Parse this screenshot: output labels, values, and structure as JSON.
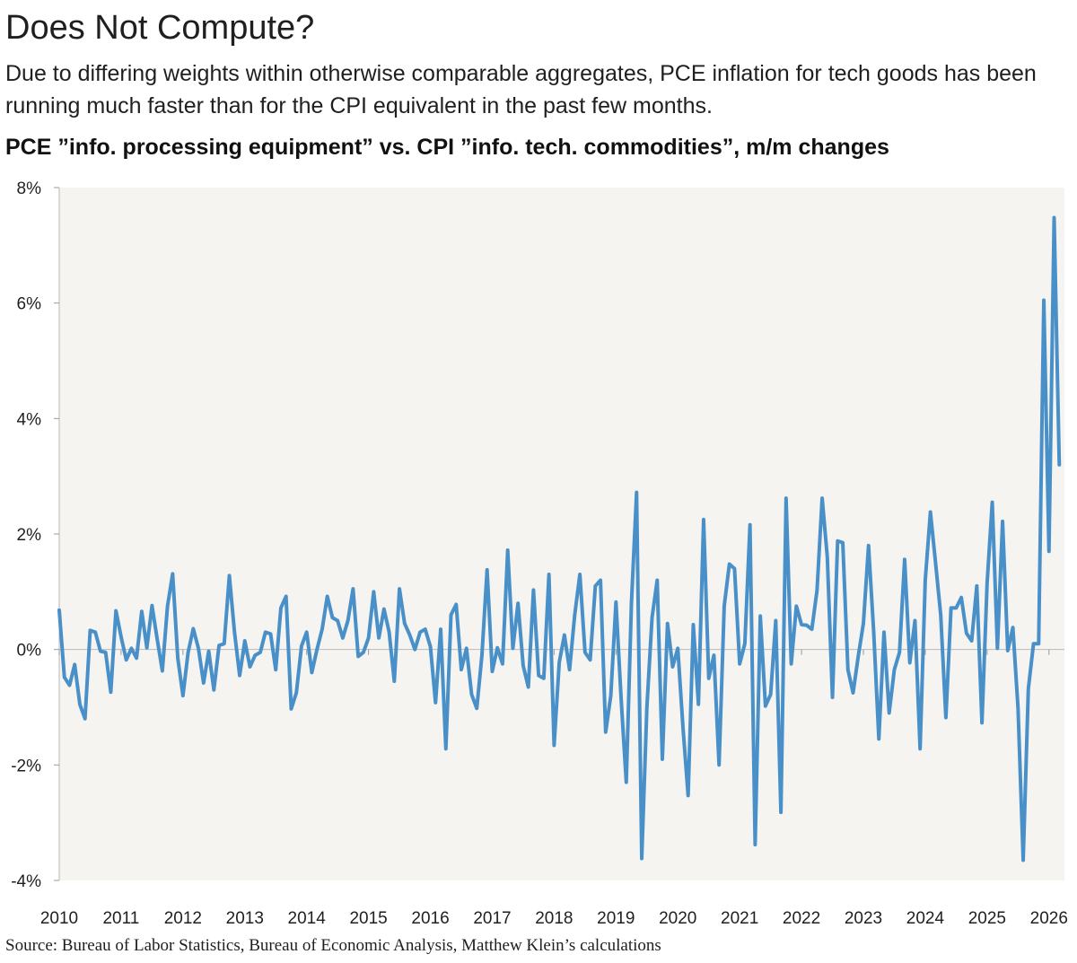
{
  "title": "Does Not Compute?",
  "subtitle": "Due to differing weights within otherwise comparable aggregates, PCE inflation for tech goods has been running much faster than for the CPI equivalent in the past few months.",
  "source": "Source: Bureau of Labor Statistics, Bureau of Economic Analysis, Matthew Klein’s calculations",
  "colors": {
    "line": "#4a90c8",
    "plot_background": "#f5f4f1",
    "zero_line": "#b9b9b9"
  },
  "chart_data": {
    "type": "line",
    "title": "PCE ”info. processing equipment” vs. CPI ”info. tech. commodities”, m/m changes",
    "xlabel": "",
    "ylabel": "",
    "unit": "%",
    "ylim": [
      -4,
      8
    ],
    "yticks": [
      -4,
      -2,
      0,
      2,
      4,
      6,
      8
    ],
    "ytick_labels": [
      "-4%",
      "-2%",
      "0%",
      "2%",
      "4%",
      "6%",
      "8%"
    ],
    "xlim": [
      2010.0,
      2026.25
    ],
    "xticks": [
      2010,
      2011,
      2012,
      2013,
      2014,
      2015,
      2016,
      2017,
      2018,
      2019,
      2020,
      2021,
      2022,
      2023,
      2024,
      2025,
      2026
    ],
    "xtick_labels": [
      "2010",
      "2011",
      "2012",
      "2013",
      "2014",
      "2015",
      "2016",
      "2017",
      "2018",
      "2019",
      "2020",
      "2021",
      "2022",
      "2023",
      "2024",
      "2025",
      "2026"
    ],
    "grid": false,
    "legend": "none",
    "series": [
      {
        "start_year": 2010,
        "start_month": 1,
        "frequency": "monthly",
        "values": [
          0.68,
          -0.48,
          -0.62,
          -0.26,
          -0.95,
          -1.2,
          0.33,
          0.3,
          -0.03,
          -0.05,
          -0.74,
          0.67,
          0.22,
          -0.18,
          0.02,
          -0.15,
          0.66,
          0.03,
          0.76,
          0.18,
          -0.37,
          0.75,
          1.31,
          -0.15,
          -0.8,
          -0.05,
          0.36,
          0.02,
          -0.58,
          -0.03,
          -0.7,
          0.07,
          0.1,
          1.28,
          0.3,
          -0.45,
          0.15,
          -0.3,
          -0.1,
          -0.05,
          0.3,
          0.27,
          -0.35,
          0.72,
          0.92,
          -1.03,
          -0.75,
          0.06,
          0.3,
          -0.4,
          0.0,
          0.35,
          0.92,
          0.55,
          0.5,
          0.2,
          0.5,
          1.05,
          -0.12,
          -0.05,
          0.2,
          1.0,
          0.2,
          0.7,
          0.3,
          -0.55,
          1.05,
          0.45,
          0.25,
          0.0,
          0.3,
          0.35,
          0.05,
          -0.92,
          0.35,
          -1.72,
          0.6,
          0.78,
          -0.35,
          0.02,
          -0.78,
          -1.02,
          -0.1,
          1.38,
          -0.38,
          0.03,
          -0.25,
          1.72,
          0.02,
          0.8,
          -0.28,
          -0.65,
          1.03,
          -0.45,
          -0.5,
          1.3,
          -1.66,
          -0.22,
          0.25,
          -0.35,
          0.6,
          1.3,
          -0.05,
          -0.18,
          1.1,
          1.2,
          -1.43,
          -0.8,
          0.82,
          -0.85,
          -2.3,
          0.8,
          2.72,
          -3.62,
          -1.0,
          0.55,
          1.2,
          -1.9,
          0.45,
          -0.3,
          0.02,
          -1.35,
          -2.53,
          0.43,
          -0.95,
          2.25,
          -0.5,
          -0.1,
          -2.0,
          0.75,
          1.48,
          1.4,
          -0.25,
          0.1,
          2.16,
          -3.38,
          0.58,
          -0.98,
          -0.78,
          0.5,
          -2.82,
          2.62,
          -0.25,
          0.75,
          0.43,
          0.42,
          0.35,
          1.02,
          2.62,
          1.6,
          -0.83,
          1.88,
          1.85,
          -0.35,
          -0.75,
          -0.12,
          0.45,
          1.8,
          0.3,
          -1.55,
          0.3,
          -1.1,
          -0.35,
          -0.05,
          1.56,
          -0.23,
          0.5,
          -1.72,
          1.2,
          2.38,
          1.5,
          0.6,
          -1.18,
          0.72,
          0.72,
          0.9,
          0.28,
          0.15,
          1.1,
          -1.27,
          1.15,
          2.55,
          0.02,
          2.22,
          -0.02,
          0.38,
          -1.02,
          -3.65,
          -0.68,
          0.1,
          0.1,
          6.05,
          1.7,
          7.48,
          3.2
        ]
      }
    ]
  }
}
